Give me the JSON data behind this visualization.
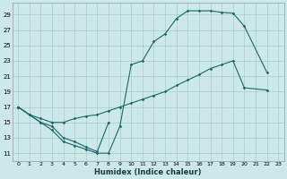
{
  "xlabel": "Humidex (Indice chaleur)",
  "bg_color": "#cce8e8",
  "grid_color": "#b0d0d0",
  "line_color": "#1a6868",
  "xlim": [
    -0.5,
    23.5
  ],
  "ylim": [
    10.0,
    30.5
  ],
  "yticks": [
    11,
    13,
    15,
    17,
    19,
    21,
    23,
    25,
    27,
    29
  ],
  "xticks": [
    0,
    1,
    2,
    3,
    4,
    5,
    6,
    7,
    8,
    9,
    10,
    11,
    12,
    13,
    14,
    15,
    16,
    17,
    18,
    19,
    20,
    21,
    22,
    23
  ],
  "line1_x": [
    0,
    1,
    2,
    3,
    4,
    5,
    6,
    7,
    8,
    9,
    10,
    11,
    12,
    13,
    14,
    15,
    16,
    17,
    18,
    19,
    20,
    22
  ],
  "line1_y": [
    17,
    16,
    15,
    14,
    12.5,
    12,
    11.5,
    11,
    11,
    14.5,
    22.5,
    23,
    25.5,
    26.5,
    28.5,
    29.5,
    29.5,
    29.5,
    29.3,
    29.2,
    27.5,
    21.5
  ],
  "line2_x": [
    0,
    1,
    2,
    3,
    4,
    5,
    6,
    7,
    8
  ],
  "line2_y": [
    17,
    16,
    15,
    14.5,
    13,
    12.5,
    11.8,
    11.2,
    15
  ],
  "line3_x": [
    0,
    1,
    2,
    3,
    4,
    5,
    6,
    7,
    8,
    9,
    10,
    11,
    12,
    13,
    14,
    15,
    16,
    17,
    18,
    19,
    20,
    22
  ],
  "line3_y": [
    17,
    16,
    15.5,
    15,
    15,
    15.5,
    15.8,
    16,
    16.5,
    17,
    17.5,
    18,
    18.5,
    19,
    19.8,
    20.5,
    21.2,
    22,
    22.5,
    23,
    19.5,
    19.2
  ]
}
